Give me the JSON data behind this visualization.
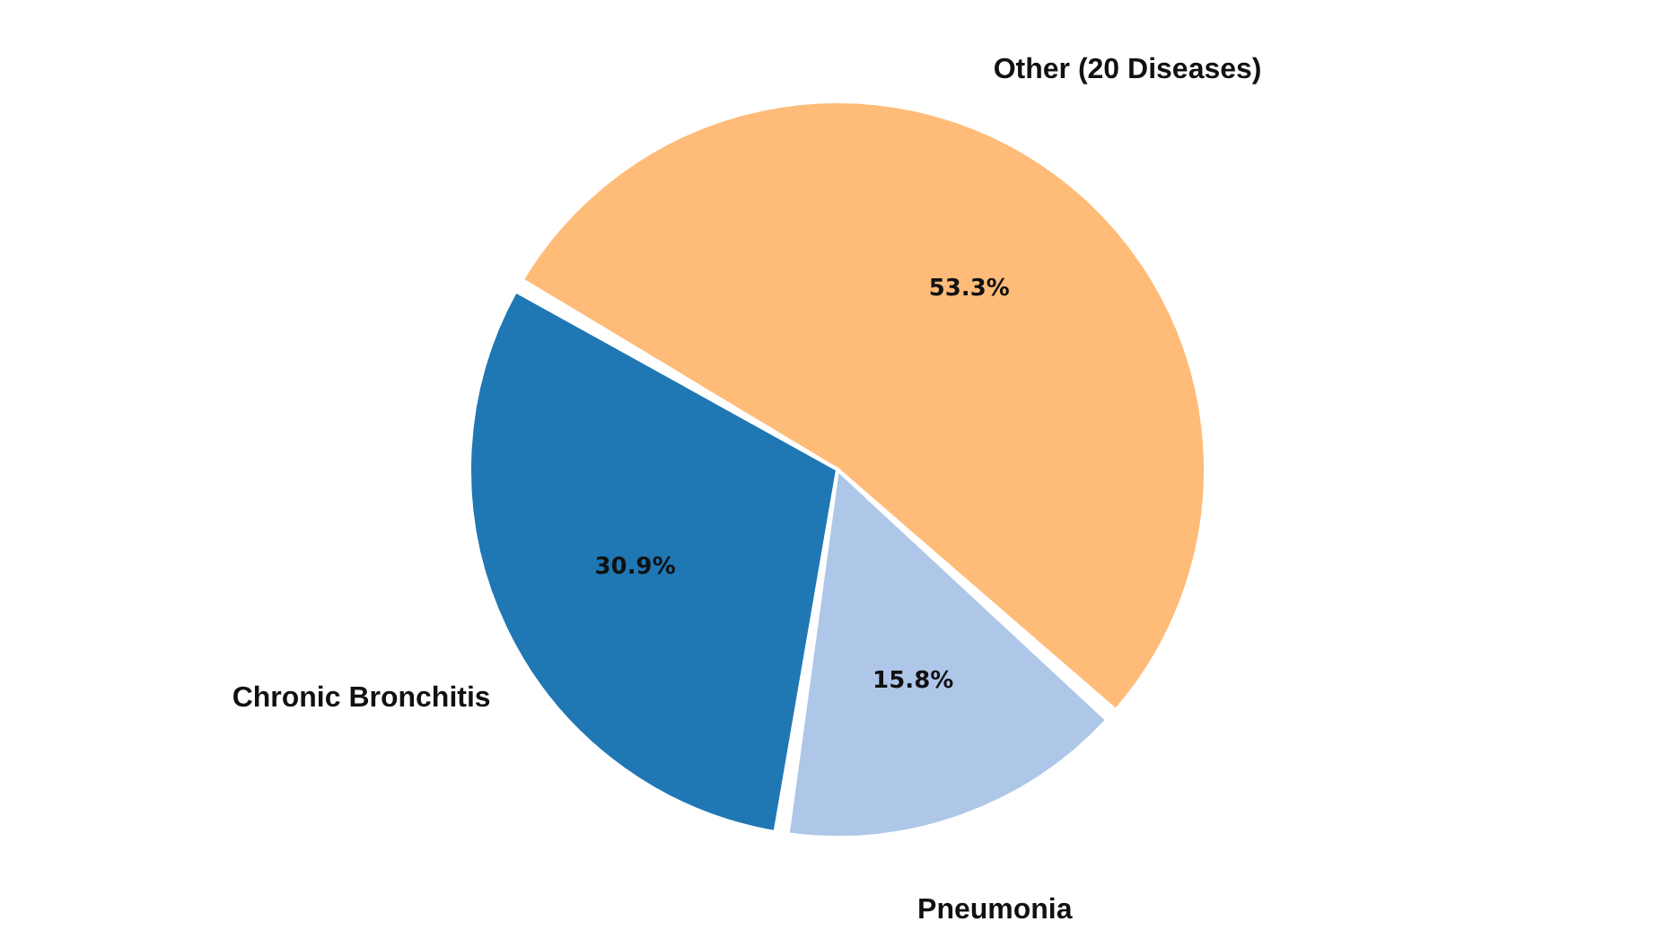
{
  "chart_data": {
    "type": "pie",
    "categories": [
      "Other (20 Diseases)",
      "Pneumonia",
      "Chronic Bronchitis"
    ],
    "values": [
      53.3,
      15.8,
      30.9
    ],
    "colors": [
      "#ffbb78",
      "#aec7e8",
      "#1f77b4"
    ],
    "value_labels": [
      "53.3%",
      "15.8%",
      "30.9%"
    ]
  }
}
